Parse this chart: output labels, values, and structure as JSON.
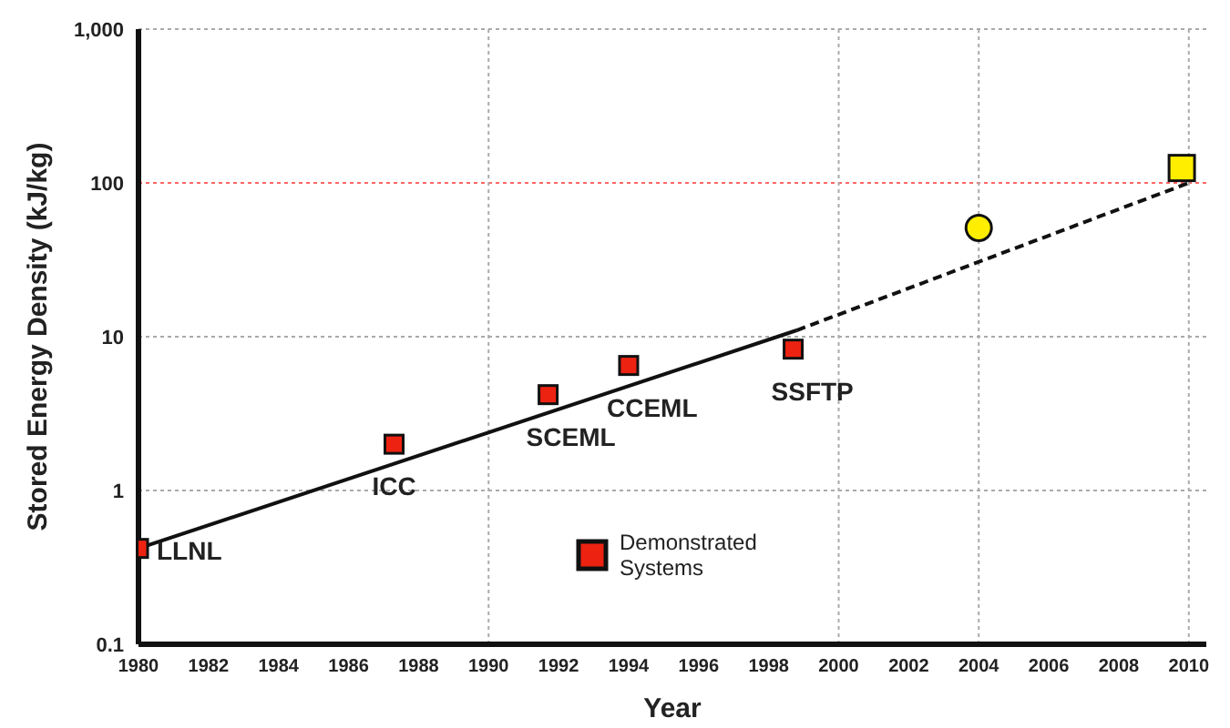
{
  "chart_data": {
    "type": "scatter",
    "xlabel": "Year",
    "ylabel": "Stored Energy Density (kJ/kg)",
    "xlim": [
      1980,
      2010.5
    ],
    "xticks": [
      1980,
      1982,
      1984,
      1986,
      1988,
      1990,
      1992,
      1994,
      1996,
      1998,
      2000,
      2002,
      2004,
      2006,
      2008,
      2010
    ],
    "ylim": [
      0.1,
      1000
    ],
    "yticks": [
      0.1,
      1,
      10,
      100,
      {
        "value": 1000,
        "label": "1,000"
      }
    ],
    "log": true,
    "grid": "y",
    "legend": "bottom",
    "series": [
      {
        "name": "Demonstrated Systems",
        "marker": "square",
        "color": "#ee2211",
        "x": [
          1980,
          1987.3,
          1991.7,
          1994,
          1998.7
        ],
        "values": [
          0.42,
          2.0,
          4.2,
          6.5,
          8.3
        ]
      },
      {
        "marker": "circle",
        "color": "#ffee00",
        "x": [
          2004
        ],
        "values": [
          51
        ]
      },
      {
        "marker": "square",
        "color": "#ffee00",
        "x": [
          2009.8
        ],
        "values": [
          125
        ]
      },
      {
        "type": "line",
        "marker": "none",
        "line_style": "solid",
        "color": "#111111",
        "x": [
          1980,
          1998.8
        ],
        "values": [
          0.42,
          11
        ]
      },
      {
        "type": "line",
        "marker": "none",
        "line_style": "dashed",
        "color": "#111111",
        "x": [
          1998.8,
          2010
        ],
        "values": [
          11,
          100
        ]
      }
    ],
    "ref_lines": [
      {
        "axis": "y",
        "value": 100,
        "color": "#ff6666",
        "line_style": "dotted"
      },
      {
        "axis": "x",
        "value": 1990,
        "color": "#aaaaaa",
        "line_style": "dotted"
      },
      {
        "axis": "x",
        "value": 2000,
        "color": "#aaaaaa",
        "line_style": "dotted"
      },
      {
        "axis": "x",
        "value": 2004,
        "color": "#aaaaaa",
        "line_style": "dotted"
      },
      {
        "axis": "x",
        "value": 2010,
        "color": "#aaaaaa",
        "line_style": "dotted"
      }
    ],
    "annotations": [
      {
        "text": "LLNL",
        "x": 1980,
        "y": 0.42
      },
      {
        "text": "ICC",
        "x": 1987.3,
        "y": 2.0
      },
      {
        "text": "SCEML",
        "x": 1991.7,
        "y": 4.2
      },
      {
        "text": "CCEML",
        "x": 1994,
        "y": 6.5
      },
      {
        "text": "SSFTP",
        "x": 1998.7,
        "y": 8.3
      }
    ]
  }
}
